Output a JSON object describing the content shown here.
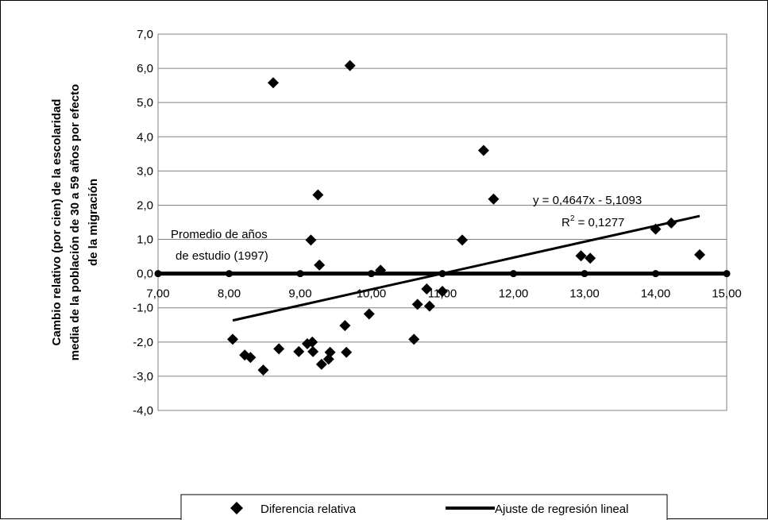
{
  "chart_data": {
    "type": "scatter",
    "title": "",
    "xlabel": "",
    "ylabel_lines": [
      "Cambio relativo (por cien) de la escolaridad",
      "media de la población de 30 a 59 años por efecto",
      "de la migración"
    ],
    "xlim": [
      7.0,
      15.0
    ],
    "ylim": [
      -4.0,
      7.0
    ],
    "x_ticks": [
      7,
      8,
      9,
      10,
      11,
      12,
      13,
      14,
      15
    ],
    "x_tick_labels": [
      "7,00",
      "8,00",
      "9,00",
      "10,00",
      "11,00",
      "12,00",
      "13,00",
      "14,00",
      "15,00"
    ],
    "y_ticks": [
      -4,
      -3,
      -2,
      -1,
      0,
      1,
      2,
      3,
      4,
      5,
      6,
      7
    ],
    "y_tick_labels": [
      "-4,0",
      "-3,0",
      "-2,0",
      "-1,0",
      "0,0",
      "1,0",
      "2,0",
      "3,0",
      "4,0",
      "5,0",
      "6,0",
      "7,0"
    ],
    "grid": "horizontal",
    "series": [
      {
        "name": "Diferencia relativa",
        "marker": "diamond",
        "points": [
          [
            8.05,
            -1.92
          ],
          [
            8.22,
            -2.38
          ],
          [
            8.3,
            -2.45
          ],
          [
            8.48,
            -2.82
          ],
          [
            8.62,
            5.58
          ],
          [
            8.7,
            -2.2
          ],
          [
            8.98,
            -2.28
          ],
          [
            9.1,
            -2.05
          ],
          [
            9.15,
            0.98
          ],
          [
            9.17,
            -2.0
          ],
          [
            9.18,
            -2.28
          ],
          [
            9.25,
            2.3
          ],
          [
            9.27,
            0.25
          ],
          [
            9.3,
            -2.65
          ],
          [
            9.4,
            -2.5
          ],
          [
            9.42,
            -2.3
          ],
          [
            9.63,
            -1.52
          ],
          [
            9.65,
            -2.3
          ],
          [
            9.7,
            6.08
          ],
          [
            9.97,
            -1.18
          ],
          [
            10.13,
            0.1
          ],
          [
            10.6,
            -1.92
          ],
          [
            10.65,
            -0.9
          ],
          [
            10.78,
            -0.45
          ],
          [
            10.82,
            -0.95
          ],
          [
            11.0,
            -0.52
          ],
          [
            11.28,
            0.98
          ],
          [
            11.58,
            3.6
          ],
          [
            11.72,
            2.18
          ],
          [
            12.95,
            0.52
          ],
          [
            13.08,
            0.45
          ],
          [
            14.0,
            1.3
          ],
          [
            14.22,
            1.48
          ],
          [
            14.62,
            0.55
          ]
        ]
      },
      {
        "name": "Ajuste de regresión lineal",
        "type": "line",
        "slope": 0.4647,
        "intercept": -5.1093,
        "x_range": [
          8.05,
          14.62
        ]
      }
    ],
    "reference_line": {
      "y": 0.0
    },
    "annotations": {
      "reference_label_line1": "Promedio de años",
      "reference_label_line2": "de estudio (1997)",
      "equation": "y = 0,4647x - 5,1093",
      "r2_prefix": "R",
      "r2_sup": "2",
      "r2_value": " = 0,1277"
    },
    "legend": {
      "placement": "bottom",
      "entries": [
        "Diferencia relativa",
        "Ajuste de regresión lineal"
      ]
    }
  }
}
